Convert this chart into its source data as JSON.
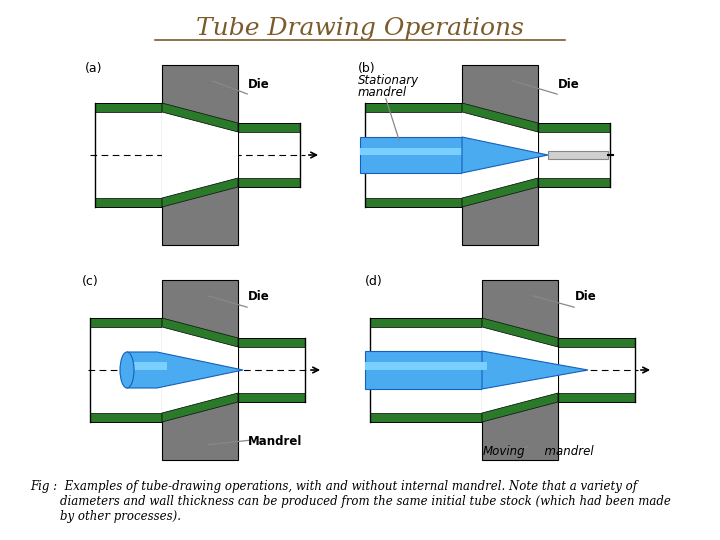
{
  "title": "Tube Drawing Operations",
  "title_color": "#7B5B2A",
  "title_fontsize": 18,
  "bg_color": "#FFFFFF",
  "die_color": "#7A7A7A",
  "green": "#2A7A2A",
  "blue_dark": "#1560BD",
  "blue_light": "#4AABF0",
  "white": "#FFFFFF",
  "black": "#000000",
  "caption_line1": "Fig :  Examples of tube-drawing operations, with and without internal mandrel. Note that a variety of",
  "caption_line2": "        diameters and wall thickness can be produced from the same initial tube stock (which had been made",
  "caption_line3": "        by other processes)."
}
